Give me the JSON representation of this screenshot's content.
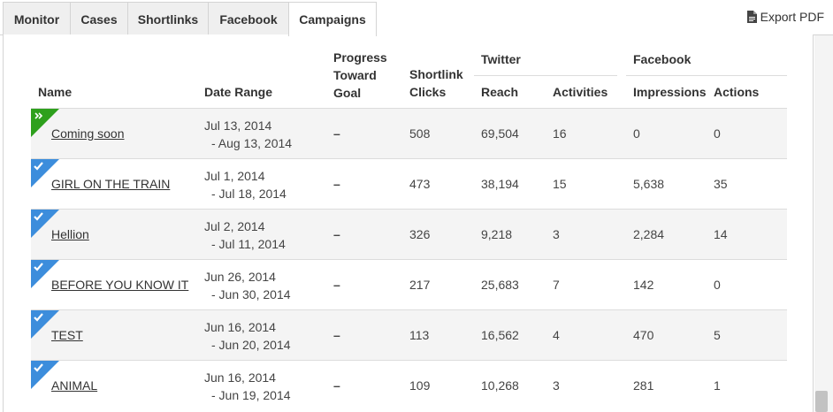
{
  "tabs": [
    {
      "label": "Monitor"
    },
    {
      "label": "Cases"
    },
    {
      "label": "Shortlinks"
    },
    {
      "label": "Facebook"
    },
    {
      "label": "Campaigns"
    }
  ],
  "active_tab": "Campaigns",
  "export_label": "Export PDF",
  "colors": {
    "status_green": "#2ea01d",
    "status_blue": "#3c8ddc"
  },
  "headers": {
    "name": "Name",
    "date_range": "Date Range",
    "progress_l1": "Progress",
    "progress_l2": "Toward",
    "progress_l3": "Goal",
    "shortlink_l1": "Shortlink",
    "shortlink_l2": "Clicks",
    "twitter_group": "Twitter",
    "reach": "Reach",
    "activities": "Activities",
    "facebook_group": "Facebook",
    "impressions": "Impressions",
    "actions": "Actions"
  },
  "rows": [
    {
      "status_icon": "double-chevron-icon",
      "name": "Coming soon",
      "date_start": "Jul 13, 2014",
      "date_end": "- Aug 13, 2014",
      "progress": "–",
      "clicks": "508",
      "reach": "69,504",
      "activities": "16",
      "impressions": "0",
      "actions": "0"
    },
    {
      "status_icon": "checkmark-icon",
      "name": "GIRL ON THE TRAIN",
      "date_start": "Jul 1, 2014",
      "date_end": "- Jul 18, 2014",
      "progress": "–",
      "clicks": "473",
      "reach": "38,194",
      "activities": "15",
      "impressions": "5,638",
      "actions": "35"
    },
    {
      "status_icon": "checkmark-icon",
      "name": "Hellion",
      "date_start": "Jul 2, 2014",
      "date_end": "- Jul 11, 2014",
      "progress": "–",
      "clicks": "326",
      "reach": "9,218",
      "activities": "3",
      "impressions": "2,284",
      "actions": "14"
    },
    {
      "status_icon": "checkmark-icon",
      "name": "BEFORE YOU KNOW IT",
      "date_start": "Jun 26, 2014",
      "date_end": "- Jun 30, 2014",
      "progress": "–",
      "clicks": "217",
      "reach": "25,683",
      "activities": "7",
      "impressions": "142",
      "actions": "0"
    },
    {
      "status_icon": "checkmark-icon",
      "name": "TEST",
      "date_start": "Jun 16, 2014",
      "date_end": "- Jun 20, 2014",
      "progress": "–",
      "clicks": "113",
      "reach": "16,562",
      "activities": "4",
      "impressions": "470",
      "actions": "5"
    },
    {
      "status_icon": "checkmark-icon",
      "name": "ANIMAL",
      "date_start": "Jun 16, 2014",
      "date_end": "- Jun 19, 2014",
      "progress": "–",
      "clicks": "109",
      "reach": "10,268",
      "activities": "3",
      "impressions": "281",
      "actions": "1"
    }
  ]
}
